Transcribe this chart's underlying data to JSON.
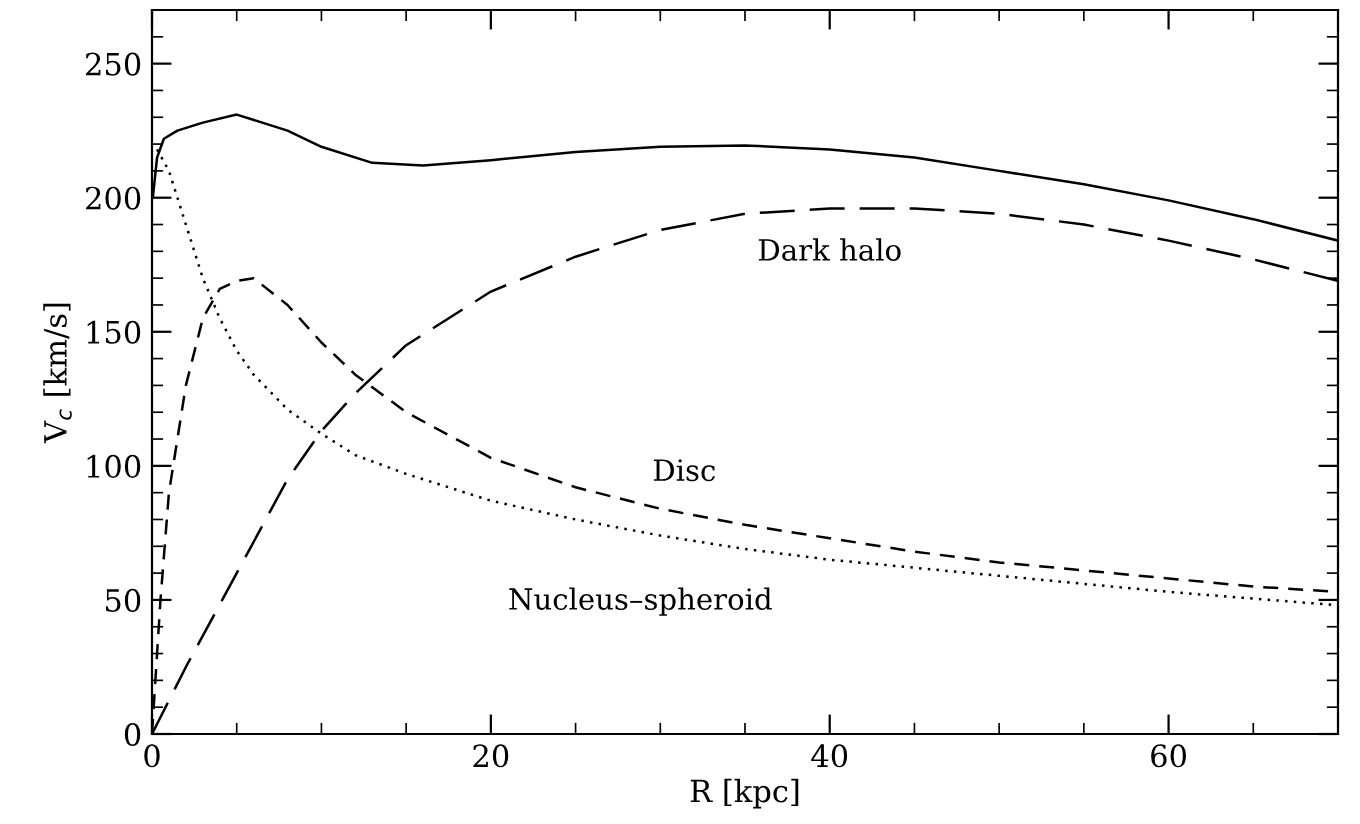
{
  "chart_data": {
    "type": "line",
    "xlabel": "R [kpc]",
    "ylabel": "V$_{c}$ [km/s]",
    "xlim": [
      0,
      70
    ],
    "ylim": [
      0,
      270
    ],
    "xticks": [
      0,
      20,
      40,
      60
    ],
    "yticks": [
      0,
      50,
      100,
      150,
      200,
      250
    ],
    "grid": false,
    "legend": false,
    "marker": "none",
    "series": [
      {
        "color": "#000000",
        "line_style": "solid",
        "x": [
          0.05,
          0.3,
          0.7,
          1.5,
          3,
          5,
          8,
          10,
          13,
          16,
          20,
          25,
          30,
          35,
          40,
          45,
          50,
          55,
          60,
          65,
          70
        ],
        "values": [
          200,
          215,
          222,
          225,
          228,
          231,
          225,
          219,
          213,
          212,
          214,
          217,
          219,
          219.5,
          218,
          215,
          210,
          205,
          199,
          192,
          184
        ]
      },
      {
        "name": "Dark halo",
        "color": "#000000",
        "line_style": "long-dashed",
        "x": [
          0,
          2,
          5,
          8,
          10,
          12,
          15,
          20,
          25,
          30,
          35,
          40,
          45,
          50,
          55,
          60,
          65,
          70
        ],
        "values": [
          0,
          25,
          60,
          95,
          113,
          127,
          145,
          165,
          178,
          188,
          194,
          196,
          196,
          194,
          190,
          184,
          177,
          169
        ]
      },
      {
        "name": "Disc",
        "color": "#000000",
        "line_style": "dashed",
        "x": [
          0,
          0.5,
          1,
          2,
          3,
          4,
          5,
          6,
          8,
          10,
          12,
          15,
          20,
          25,
          30,
          35,
          40,
          45,
          50,
          55,
          60,
          65,
          70
        ],
        "values": [
          0,
          50,
          90,
          130,
          155,
          166,
          169,
          170,
          160,
          146,
          134,
          120,
          103,
          92,
          84,
          78,
          73,
          68,
          64,
          61,
          58,
          55,
          53
        ]
      },
      {
        "name": "Nucleus–spheroid",
        "color": "#000000",
        "line_style": "dotted",
        "x": [
          0.3,
          1,
          2,
          3,
          4,
          5,
          6,
          8,
          10,
          12,
          15,
          20,
          25,
          30,
          35,
          40,
          50,
          60,
          70
        ],
        "values": [
          218,
          210,
          190,
          170,
          155,
          143,
          134,
          121,
          112,
          104,
          97,
          87,
          80,
          74,
          69,
          65,
          59,
          53,
          48
        ]
      }
    ]
  }
}
